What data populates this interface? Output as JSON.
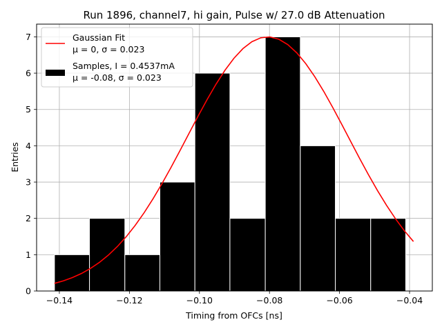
{
  "chart_data": {
    "type": "bar",
    "title": "Run 1896, channel7, hi gain, Pulse w/ 27.0 dB Attenuation",
    "xlabel": "Timing from OFCs [ns]",
    "ylabel": "Entries",
    "xlim": [
      -0.1465,
      -0.0335
    ],
    "ylim": [
      0,
      7.35
    ],
    "xticks": [
      -0.14,
      -0.12,
      -0.1,
      -0.08,
      -0.06,
      -0.04
    ],
    "xtick_labels": [
      "−0.14",
      "−0.12",
      "−0.10",
      "−0.08",
      "−0.06",
      "−0.04"
    ],
    "yticks": [
      0,
      1,
      2,
      3,
      4,
      5,
      6,
      7
    ],
    "ytick_labels": [
      "0",
      "1",
      "2",
      "3",
      "4",
      "5",
      "6",
      "7"
    ],
    "grid": true,
    "histogram": {
      "name": "Samples, I = 0.4537mA",
      "stats": "μ = -0.08, σ = 0.023",
      "bin_edges": [
        -0.1414,
        -0.1314,
        -0.1213,
        -0.1113,
        -0.1013,
        -0.0913,
        -0.0812,
        -0.0712,
        -0.0612,
        -0.0511,
        -0.0411
      ],
      "counts": [
        1,
        2,
        1,
        3,
        6,
        2,
        7,
        4,
        2,
        2
      ],
      "color": "#000000"
    },
    "fit": {
      "name": "Gaussian Fit",
      "stats": "μ = 0, σ = 0.023",
      "type": "gaussian",
      "amplitude": 7.0,
      "mean": -0.0805,
      "sigma": 0.023,
      "x_range": [
        -0.1414,
        -0.0389
      ],
      "color": "#ff0000"
    },
    "legend": {
      "position": "top-left",
      "entries": [
        {
          "label": "Gaussian Fit",
          "sublabel": "μ = 0, σ = 0.023",
          "marker": "line",
          "color": "#ff0000"
        },
        {
          "label": "Samples, I = 0.4537mA",
          "sublabel": "μ = -0.08, σ = 0.023",
          "marker": "patch",
          "color": "#000000"
        }
      ]
    }
  }
}
